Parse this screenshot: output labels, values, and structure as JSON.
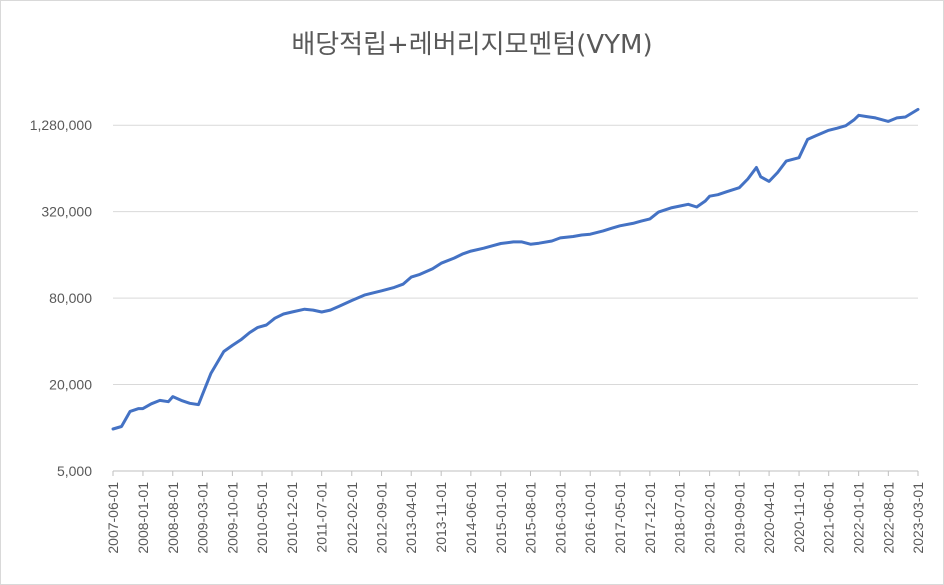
{
  "chart_data": {
    "type": "line",
    "title": "배당적립+레버리지모멘텀(VYM)",
    "xlabel": "",
    "ylabel": "",
    "y_scale": "log",
    "ylim": [
      5000,
      2560000
    ],
    "yticks": [
      5000,
      20000,
      80000,
      320000,
      1280000
    ],
    "ytick_labels": [
      "5,000",
      "20,000",
      "80,000",
      "320,000",
      "1,280,000"
    ],
    "xtick_labels": [
      "2007-06-01",
      "2008-01-01",
      "2008-08-01",
      "2009-03-01",
      "2009-10-01",
      "2010-05-01",
      "2010-12-01",
      "2011-07-01",
      "2012-02-01",
      "2012-09-01",
      "2013-04-01",
      "2013-11-01",
      "2014-06-01",
      "2015-01-01",
      "2015-08-01",
      "2016-03-01",
      "2016-10-01",
      "2017-05-01",
      "2017-12-01",
      "2018-07-01",
      "2019-02-01",
      "2019-09-01",
      "2020-04-01",
      "2020-11-01",
      "2021-06-01",
      "2022-01-01",
      "2022-08-01",
      "2023-03-01"
    ],
    "grid": true,
    "legend": "none",
    "line_color": "#4472c4",
    "grid_color": "#d9d9d9",
    "series": [
      {
        "x": [
          "2007-06-01",
          "2007-08-01",
          "2007-10-01",
          "2007-12-01",
          "2008-01-01",
          "2008-03-01",
          "2008-05-01",
          "2008-07-01",
          "2008-08-01",
          "2008-10-01",
          "2008-12-01",
          "2009-02-01",
          "2009-03-01",
          "2009-05-01",
          "2009-08-01",
          "2009-10-01",
          "2009-12-01",
          "2010-02-01",
          "2010-04-01",
          "2010-06-01",
          "2010-08-01",
          "2010-10-01",
          "2010-12-01",
          "2011-03-01",
          "2011-05-01",
          "2011-07-01",
          "2011-09-01",
          "2011-11-01",
          "2012-02-01",
          "2012-05-01",
          "2012-07-01",
          "2012-09-01",
          "2012-12-01",
          "2013-02-01",
          "2013-04-01",
          "2013-06-01",
          "2013-09-01",
          "2013-11-01",
          "2014-02-01",
          "2014-04-01",
          "2014-06-01",
          "2014-09-01",
          "2014-11-01",
          "2015-01-01",
          "2015-04-01",
          "2015-06-01",
          "2015-08-01",
          "2015-10-01",
          "2016-01-01",
          "2016-03-01",
          "2016-06-01",
          "2016-08-01",
          "2016-10-01",
          "2017-01-01",
          "2017-03-01",
          "2017-05-01",
          "2017-08-01",
          "2017-10-01",
          "2017-12-01",
          "2018-02-01",
          "2018-05-01",
          "2018-07-01",
          "2018-09-01",
          "2018-11-01",
          "2019-01-01",
          "2019-02-01",
          "2019-04-01",
          "2019-06-01",
          "2019-09-01",
          "2019-11-01",
          "2020-01-01",
          "2020-02-01",
          "2020-04-01",
          "2020-06-01",
          "2020-08-01",
          "2020-11-01",
          "2021-01-01",
          "2021-03-01",
          "2021-06-01",
          "2021-08-01",
          "2021-10-01",
          "2021-12-01",
          "2022-01-01",
          "2022-03-01",
          "2022-05-01",
          "2022-08-01",
          "2022-10-01",
          "2022-12-01",
          "2023-03-01"
        ],
        "values": [
          9800,
          10200,
          13000,
          13600,
          13600,
          14700,
          15500,
          15200,
          16500,
          15500,
          14800,
          14500,
          17000,
          24000,
          34000,
          37500,
          41000,
          46000,
          50000,
          52000,
          58000,
          62000,
          64000,
          67000,
          66000,
          64000,
          66000,
          70000,
          77000,
          84000,
          87000,
          90000,
          95000,
          100000,
          112000,
          117000,
          128000,
          140000,
          152000,
          162000,
          170000,
          178000,
          185000,
          192000,
          197000,
          197000,
          190000,
          193000,
          200000,
          210000,
          215000,
          220000,
          223000,
          235000,
          245000,
          255000,
          265000,
          275000,
          285000,
          318000,
          340000,
          350000,
          360000,
          345000,
          380000,
          410000,
          420000,
          440000,
          470000,
          540000,
          650000,
          560000,
          520000,
          600000,
          720000,
          760000,
          1020000,
          1080000,
          1180000,
          1220000,
          1270000,
          1400000,
          1500000,
          1470000,
          1440000,
          1360000,
          1440000,
          1460000,
          1650000
        ]
      }
    ]
  }
}
